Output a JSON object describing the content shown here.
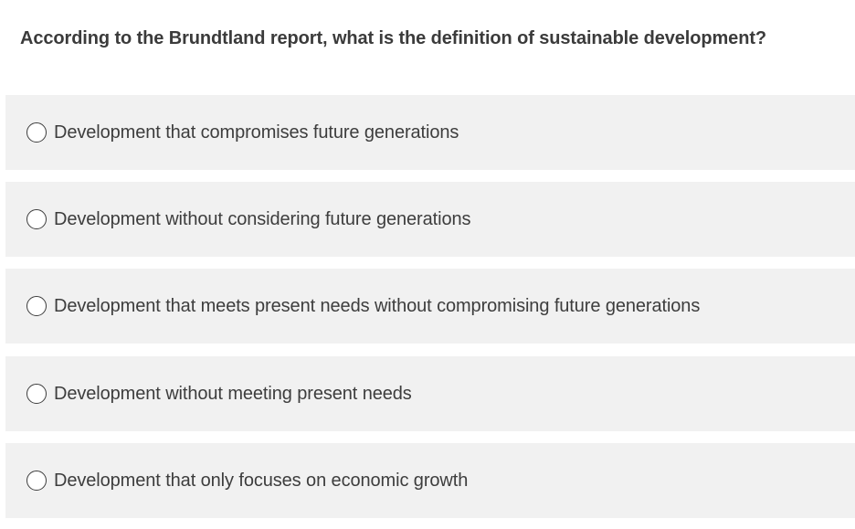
{
  "question": {
    "text": "According to the Brundtland report, what is the definition of sustainable development?"
  },
  "options": [
    {
      "label": "Development that compromises future generations",
      "selected": false
    },
    {
      "label": "Development without considering future generations",
      "selected": false
    },
    {
      "label": "Development that meets present needs without compromising future generations",
      "selected": false
    },
    {
      "label": "Development without meeting present needs",
      "selected": false
    },
    {
      "label": "Development that only focuses on economic growth",
      "selected": false
    }
  ],
  "colors": {
    "option_background": "#f1f1f1",
    "text": "#3d3d3d",
    "page_background": "#ffffff"
  }
}
